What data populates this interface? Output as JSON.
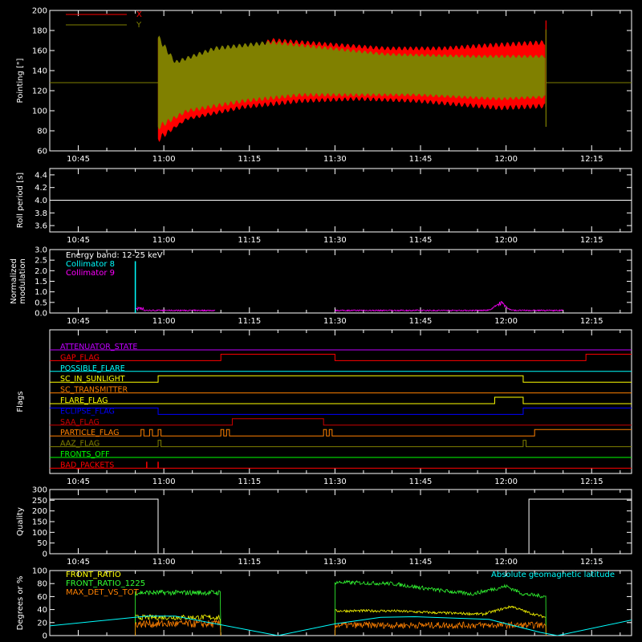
{
  "colors": {
    "background": "#000000",
    "axis": "#ffffff",
    "red": "#ff0000",
    "olive": "#808000",
    "cyan": "#00ffff",
    "magenta": "#ff00ff",
    "orange": "#ff8000",
    "yellow": "#ffff00",
    "green": "#00ff00",
    "blue": "#0000ff",
    "purple": "#c000ff",
    "dark_red": "#cc0000",
    "light_green": "#33ff33"
  },
  "time_axis": {
    "labels": [
      "10:45",
      "11:00",
      "11:15",
      "11:30",
      "11:45",
      "12:00",
      "12:15"
    ],
    "start_min": 40,
    "end_min": 142
  },
  "chart_data": [
    {
      "id": "pointing",
      "type": "area",
      "ylabel": "Pointing [\"]",
      "ylim": [
        60,
        200
      ],
      "yticks": [
        60,
        80,
        100,
        120,
        140,
        160,
        180,
        200
      ],
      "legend": [
        "X",
        "Y"
      ],
      "series": [
        {
          "name": "X",
          "color": "red",
          "baseline": 128,
          "active_window": [
            "10:59",
            "12:07"
          ],
          "envelope_upper": [
            [
              0,
              172
            ],
            [
              3,
              120
            ],
            [
              8,
              146
            ],
            [
              20,
              170
            ],
            [
              30,
              166
            ],
            [
              40,
              162
            ],
            [
              50,
              162
            ],
            [
              58,
              165
            ],
            [
              68,
              168
            ]
          ],
          "envelope_lower": [
            [
              0,
              72
            ],
            [
              5,
              92
            ],
            [
              15,
              104
            ],
            [
              25,
              110
            ],
            [
              35,
              112
            ],
            [
              45,
              110
            ],
            [
              60,
              103
            ],
            [
              68,
              105
            ]
          ]
        },
        {
          "name": "Y",
          "color": "olive",
          "baseline": 128,
          "active_window": [
            "10:59",
            "12:07"
          ],
          "envelope_upper": [
            [
              0,
              173
            ],
            [
              3,
              148
            ],
            [
              10,
              162
            ],
            [
              20,
              168
            ],
            [
              30,
              162
            ],
            [
              40,
              156
            ],
            [
              55,
              154
            ],
            [
              68,
              154
            ]
          ],
          "envelope_lower": [
            [
              0,
              84
            ],
            [
              5,
              100
            ],
            [
              15,
              110
            ],
            [
              25,
              116
            ],
            [
              35,
              116
            ],
            [
              45,
              116
            ],
            [
              60,
              112
            ],
            [
              68,
              114
            ]
          ]
        }
      ]
    },
    {
      "id": "roll_period",
      "type": "line",
      "ylabel": "Roll period [s]",
      "ylim": [
        3.5,
        4.5
      ],
      "yticks": [
        3.6,
        3.8,
        4.0,
        4.2,
        4.4
      ],
      "series": [
        {
          "name": "Roll period",
          "color": "axis",
          "value": 4.0
        }
      ]
    },
    {
      "id": "modulation",
      "type": "line",
      "ylabel_lines": [
        "Normalized",
        "modulation"
      ],
      "ylim": [
        0.0,
        3.0
      ],
      "yticks": [
        0.0,
        0.5,
        1.0,
        1.5,
        2.0,
        2.5,
        3.0
      ],
      "legend": [
        "Energy band: 12-25 keV",
        "Collimator 8",
        "Collimator 9"
      ],
      "series": [
        {
          "name": "Collimator 8",
          "color": "cyan",
          "spike": {
            "time": "10:55",
            "value": 2.45
          }
        },
        {
          "name": "Collimator 9",
          "color": "magenta",
          "segments": [
            [
              "10:55",
              "11:09"
            ],
            [
              "11:30",
              "12:10"
            ]
          ],
          "level": 0.12,
          "bump": {
            "time": "11:59",
            "value": 0.55
          }
        }
      ]
    },
    {
      "id": "flags",
      "type": "table",
      "ylabel": "Flags",
      "rows": [
        {
          "label": "ATTENUATOR_STATE",
          "color": "purple",
          "transitions": [],
          "start": 0
        },
        {
          "label": "GAP_FLAG",
          "color": "red",
          "transitions": [
            "11:10",
            "11:30",
            "12:14"
          ],
          "start": 0
        },
        {
          "label": "POSSIBLE_FLARE",
          "color": "cyan",
          "transitions": [],
          "start": 0
        },
        {
          "label": "SC_IN_SUNLIGHT",
          "color": "yellow",
          "transitions": [
            "10:59",
            "12:03"
          ],
          "start": 0
        },
        {
          "label": "SC_TRANSMITTER",
          "color": "orange",
          "transitions": [],
          "start": 0
        },
        {
          "label": "FLARE_FLAG",
          "color": "yellow",
          "transitions": [
            "11:58",
            "12:03"
          ],
          "start": 0
        },
        {
          "label": "ECLIPSE_FLAG",
          "color": "blue",
          "transitions": [
            "10:59",
            "12:03"
          ],
          "start": 1
        },
        {
          "label": "SAA_FLAG",
          "color": "dark_red",
          "transitions": [
            "11:12",
            "11:28"
          ],
          "start": 0
        },
        {
          "label": "PARTICLE_FLAG",
          "color": "orange",
          "transitions": [
            "10:56",
            "10:56.5",
            "10:57.5",
            "10:58",
            "10:59",
            "10:59.5",
            "11:10",
            "11:10.5",
            "11:11",
            "11:11.5",
            "11:28",
            "11:28.5",
            "11:29",
            "11:29.5",
            "12:05"
          ],
          "start": 0
        },
        {
          "label": "AAZ_FLAG",
          "color": "olive",
          "transitions": [
            "10:59",
            "10:59.5",
            "12:03",
            "12:03.5"
          ],
          "start": 0
        },
        {
          "label": "FRONTS_OFF",
          "color": "green",
          "transitions": [],
          "start": 0
        },
        {
          "label": "BAD_PACKETS",
          "color": "red",
          "spikes": [
            "10:57",
            "10:59"
          ],
          "transitions": [],
          "start": 0
        }
      ]
    },
    {
      "id": "quality",
      "type": "line",
      "ylabel": "Quality",
      "ylim": [
        0,
        300
      ],
      "yticks": [
        0,
        50,
        100,
        150,
        200,
        250,
        300
      ],
      "series": [
        {
          "name": "Quality",
          "color": "axis",
          "points": [
            [
              "10:40",
              255
            ],
            [
              "10:59",
              255
            ],
            [
              "10:59",
              0
            ],
            [
              "12:04",
              0
            ],
            [
              "12:04",
              255
            ],
            [
              "12:22",
              255
            ]
          ]
        }
      ]
    },
    {
      "id": "ratios",
      "type": "line",
      "ylabel": "Degrees or %",
      "ylim": [
        0,
        100
      ],
      "yticks": [
        0,
        20,
        40,
        60,
        80,
        100
      ],
      "legend_left": [
        "FRONT_RATIO",
        "FRONT_RATIO_1225",
        "MAX_DET_VS_TOT"
      ],
      "legend_right": "Absolute geomagnetic latitude",
      "series": [
        {
          "name": "FRONT_RATIO",
          "color": "yellow",
          "segments": [
            {
              "window": [
                "10:55",
                "11:10"
              ],
              "level": 28,
              "noise": 4
            },
            {
              "window": [
                "11:30",
                "12:07"
              ],
              "profile": [
                [
                  0,
                  38
                ],
                [
                  10,
                  38
                ],
                [
                  18,
                  35
                ],
                [
                  26,
                  33
                ],
                [
                  31,
                  45
                ],
                [
                  34,
                  35
                ],
                [
                  37,
                  28
                ]
              ],
              "noise": 2
            }
          ]
        },
        {
          "name": "FRONT_RATIO_1225",
          "color": "light_green",
          "segments": [
            {
              "window": [
                "10:55",
                "11:10"
              ],
              "level": 66,
              "noise": 4
            },
            {
              "window": [
                "11:30",
                "12:07"
              ],
              "profile": [
                [
                  0,
                  82
                ],
                [
                  10,
                  80
                ],
                [
                  18,
                  70
                ],
                [
                  24,
                  64
                ],
                [
                  30,
                  76
                ],
                [
                  33,
                  64
                ],
                [
                  37,
                  60
                ]
              ],
              "noise": 3
            }
          ]
        },
        {
          "name": "MAX_DET_VS_TOT",
          "color": "orange",
          "segments": [
            {
              "window": [
                "10:55",
                "11:10"
              ],
              "level": 18,
              "noise": 6
            },
            {
              "window": [
                "11:30",
                "12:07"
              ],
              "level": 16,
              "noise": 5
            }
          ]
        },
        {
          "name": "Absolute geomagnetic latitude",
          "color": "cyan",
          "points": [
            [
              "10:40",
              15
            ],
            [
              "10:57",
              30
            ],
            [
              "11:02",
              30
            ],
            [
              "11:20",
              0
            ],
            [
              "11:30",
              18
            ],
            [
              "11:38",
              28
            ],
            [
              "11:44",
              29
            ],
            [
              "11:57",
              25
            ],
            [
              "12:06",
              5
            ],
            [
              "12:09",
              0
            ],
            [
              "12:22",
              24
            ]
          ]
        }
      ]
    }
  ]
}
